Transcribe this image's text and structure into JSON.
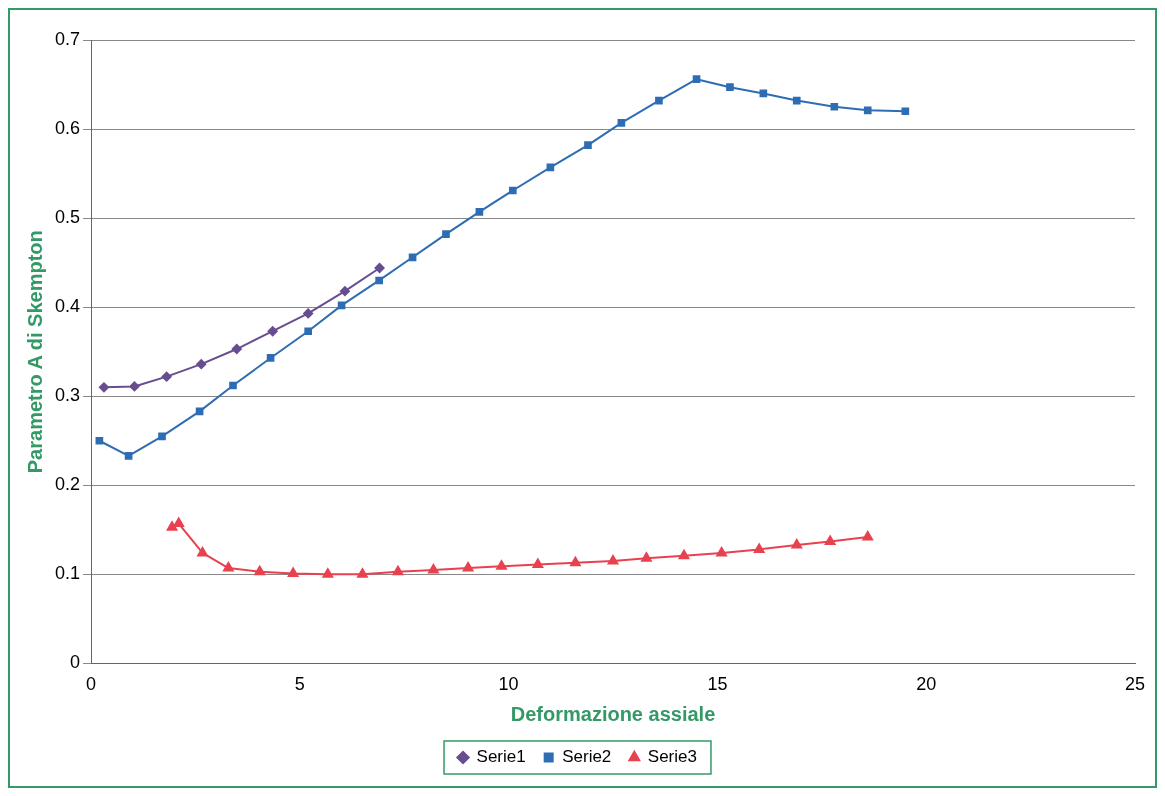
{
  "chart_data": {
    "type": "line",
    "xlabel": "Deformazione assiale",
    "ylabel": "Parametro A di Skempton",
    "xlim": [
      0,
      25
    ],
    "xticks": [
      0,
      5,
      10,
      15,
      20,
      25
    ],
    "ylim": [
      0,
      0.7
    ],
    "yticks": [
      0,
      0.1,
      0.2,
      0.3,
      0.4,
      0.5,
      0.6,
      0.7
    ],
    "grid": "y",
    "legend": "bottom",
    "series": [
      {
        "name": "Serie1",
        "color": "#674e8f",
        "marker": "diamond",
        "x": [
          0.31,
          1.04,
          1.81,
          2.64,
          3.49,
          4.35,
          5.2,
          6.08,
          6.91
        ],
        "values": [
          0.31,
          0.311,
          0.322,
          0.336,
          0.353,
          0.373,
          0.393,
          0.418,
          0.444
        ]
      },
      {
        "name": "Serie2",
        "color": "#2e6db4",
        "marker": "square",
        "x": [
          0.2,
          0.9,
          1.7,
          2.6,
          3.4,
          4.3,
          5.2,
          6.0,
          6.9,
          7.7,
          8.5,
          9.3,
          10.1,
          11.0,
          11.9,
          12.7,
          13.6,
          14.5,
          15.3,
          16.1,
          16.9,
          17.8,
          18.6,
          19.5
        ],
        "values": [
          0.25,
          0.233,
          0.255,
          0.283,
          0.312,
          0.343,
          0.373,
          0.402,
          0.43,
          0.456,
          0.482,
          0.507,
          0.531,
          0.557,
          0.582,
          0.607,
          0.632,
          0.656,
          0.647,
          0.64,
          0.632,
          0.625,
          0.621,
          0.62
        ]
      },
      {
        "name": "Serie3",
        "color": "#e8414f",
        "marker": "triangle",
        "x": [
          1.94,
          2.1,
          2.67,
          3.29,
          4.04,
          4.84,
          5.67,
          6.5,
          7.35,
          8.2,
          9.03,
          9.83,
          10.7,
          11.6,
          12.5,
          13.3,
          14.2,
          15.1,
          16.0,
          16.9,
          17.7,
          18.6
        ],
        "values": [
          0.153,
          0.157,
          0.124,
          0.107,
          0.103,
          0.101,
          0.1,
          0.1,
          0.103,
          0.105,
          0.107,
          0.109,
          0.111,
          0.113,
          0.115,
          0.118,
          0.121,
          0.124,
          0.128,
          0.133,
          0.137,
          0.142
        ]
      }
    ]
  }
}
